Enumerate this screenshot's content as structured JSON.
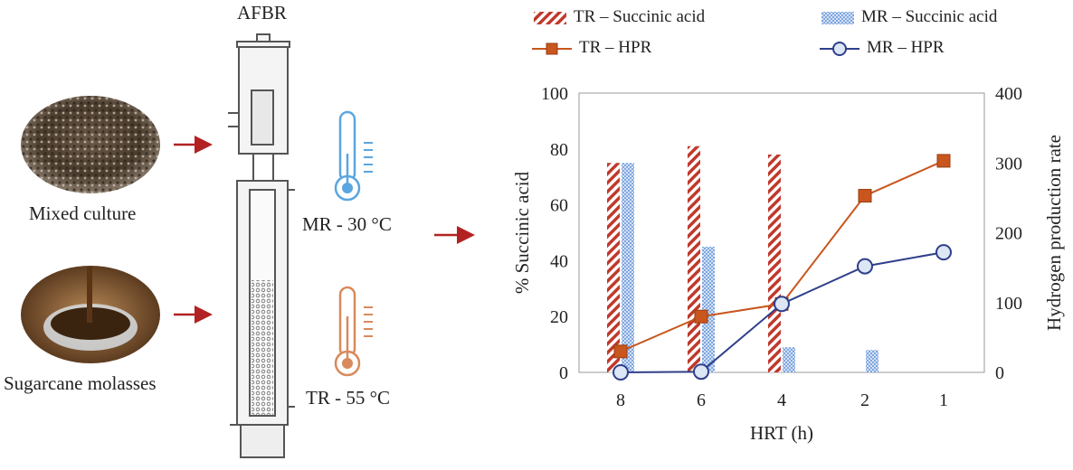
{
  "diagram": {
    "reactor_title": "AFBR",
    "inputs": [
      {
        "label": "Mixed culture",
        "icon": "mixed-culture-photo-icon"
      },
      {
        "label": "Sugarcane molasses",
        "icon": "molasses-photo-icon"
      }
    ],
    "reactors": [
      {
        "label": "MR - 30 °C",
        "color": "#5aa6e0",
        "icon": "thermometer-icon"
      },
      {
        "label": "TR - 55 °C",
        "color": "#d98a5c",
        "icon": "thermometer-icon"
      }
    ],
    "arrow_color": "#b22222"
  },
  "chart_data": {
    "type": "bar",
    "x_categories": [
      "8",
      "6",
      "4",
      "2",
      "1"
    ],
    "xlabel": "HRT (h)",
    "ylabel_left": "% Succinic acid",
    "ylabel_right": "Hydrogen production rate",
    "ylim_left": [
      0,
      100
    ],
    "ylim_right": [
      0,
      400
    ],
    "yticks_left": [
      "0",
      "20",
      "40",
      "60",
      "80",
      "100"
    ],
    "yticks_right": [
      "0",
      "100",
      "200",
      "300",
      "400"
    ],
    "grid": false,
    "legend_position": "top",
    "series": [
      {
        "name": "TR – Succinic acid",
        "kind": "bar",
        "axis": "left",
        "color": "#c0392b",
        "pattern": "hatch",
        "values": [
          75,
          81,
          78,
          0,
          0
        ]
      },
      {
        "name": "MR – Succinic acid",
        "kind": "bar",
        "axis": "left",
        "color": "#7ea6e0",
        "pattern": "dots",
        "values": [
          75,
          45,
          9,
          8,
          0
        ]
      },
      {
        "name": "TR – HPR",
        "kind": "line",
        "axis": "right",
        "color": "#c8561e",
        "marker": "square",
        "values": [
          30,
          80,
          98,
          253,
          303
        ]
      },
      {
        "name": "MR – HPR",
        "kind": "line",
        "axis": "right",
        "color": "#2e3f8a",
        "marker": "circle",
        "values": [
          0,
          1,
          98,
          152,
          172
        ]
      }
    ]
  }
}
